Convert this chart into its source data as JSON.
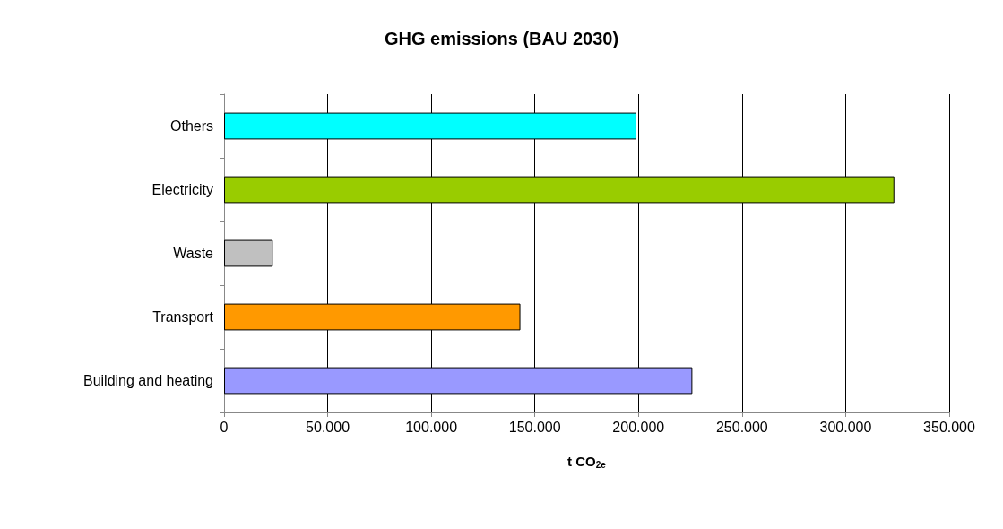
{
  "chart_data": {
    "type": "bar",
    "orientation": "horizontal",
    "title": "GHG emissions (BAU 2030)",
    "xlabel": "t CO$_{2e}$",
    "categories": [
      "Others",
      "Electricity",
      "Waste",
      "Transport",
      "Building and heating"
    ],
    "values": [
      199000,
      323500,
      23500,
      143000,
      226000
    ],
    "colors": [
      "#00ffff",
      "#99cc00",
      "#c0c0c0",
      "#ff9900",
      "#9999ff"
    ],
    "xlim": [
      0,
      350000
    ],
    "xticks": [
      0,
      {
        "value": 50000,
        "label": "50.000"
      },
      {
        "value": 100000,
        "label": "100.000"
      },
      {
        "value": 150000,
        "label": "150.000"
      },
      {
        "value": 200000,
        "label": "200.000"
      },
      {
        "value": 250000,
        "label": "250.000"
      },
      {
        "value": 300000,
        "label": "300.000"
      },
      {
        "value": 350000,
        "label": "350.000"
      }
    ],
    "grid": "x"
  }
}
